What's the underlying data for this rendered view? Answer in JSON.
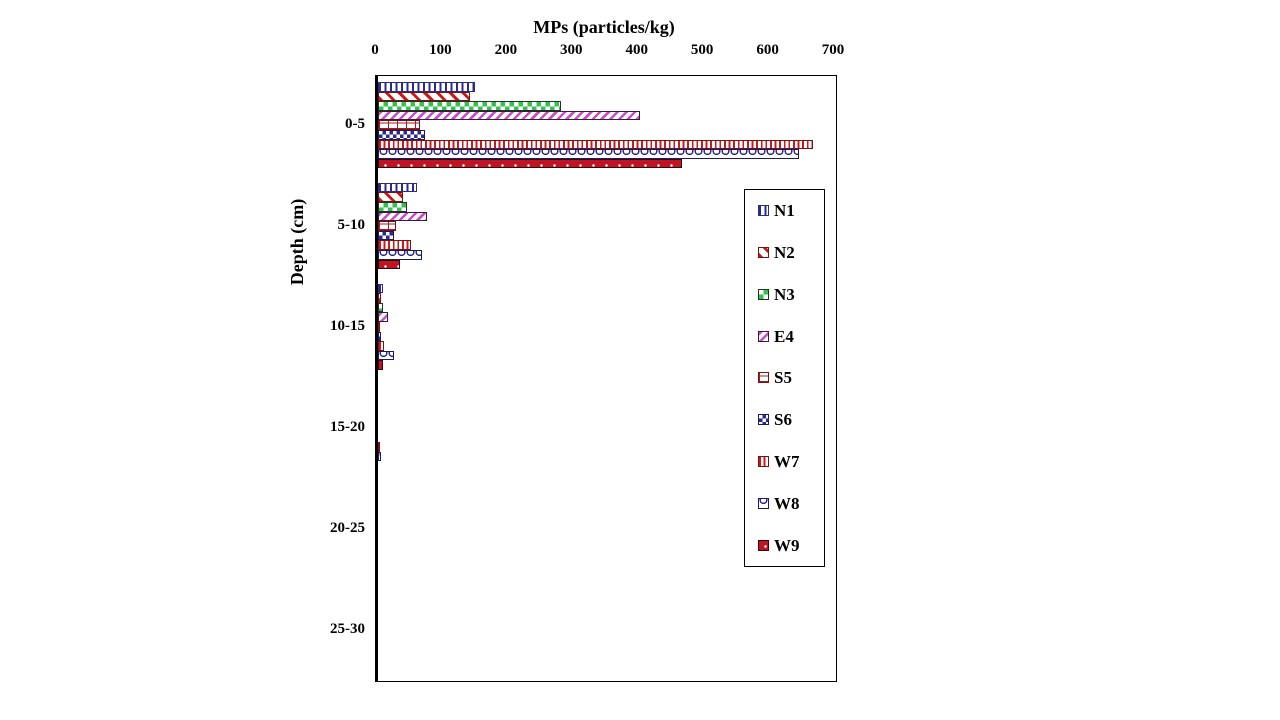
{
  "chart_data": {
    "type": "bar",
    "orientation": "horizontal",
    "title": "MPs (particles/kg)",
    "xlabel": "MPs (particles/kg)",
    "ylabel": "Depth (cm)",
    "xlim": [
      0,
      700
    ],
    "x_ticks": [
      0,
      100,
      200,
      300,
      400,
      500,
      600,
      700
    ],
    "grid": false,
    "legend_position": "right-inside",
    "categories": [
      "0-5",
      "5-10",
      "10-15",
      "15-20",
      "20-25",
      "25-30"
    ],
    "series": [
      {
        "name": "N1",
        "pattern": "vlines",
        "color": "#2b2b8f",
        "border": "#2b2b8f",
        "values": [
          148,
          60,
          8,
          0,
          0,
          0
        ]
      },
      {
        "name": "N2",
        "pattern": "diag-down",
        "color": "#cc1a1a",
        "border": "#7a1010",
        "values": [
          140,
          38,
          5,
          0,
          0,
          0
        ]
      },
      {
        "name": "N3",
        "pattern": "checker",
        "color": "#33c24d",
        "border": "#223322",
        "values": [
          280,
          45,
          8,
          0,
          0,
          0
        ]
      },
      {
        "name": "E4",
        "pattern": "diag-up",
        "color": "#c94fc9",
        "border": "#3a1a3a",
        "values": [
          400,
          75,
          16,
          0,
          0,
          0
        ]
      },
      {
        "name": "S5",
        "pattern": "brick",
        "color": "#a51c1c",
        "border": "#7a1010",
        "values": [
          64,
          28,
          3,
          0,
          0,
          0
        ]
      },
      {
        "name": "S6",
        "pattern": "checker-small",
        "color": "#2b2b8f",
        "border": "#1a1a6b",
        "values": [
          72,
          25,
          4,
          0,
          0,
          0
        ]
      },
      {
        "name": "W7",
        "pattern": "vlines-dense",
        "color": "#cc1a1a",
        "border": "#7a1010",
        "values": [
          665,
          50,
          9,
          3,
          0,
          0
        ]
      },
      {
        "name": "W8",
        "pattern": "scallop",
        "color": "#2b2b8f",
        "border": "#1a1a6b",
        "values": [
          643,
          68,
          24,
          4,
          0,
          0
        ]
      },
      {
        "name": "W9",
        "pattern": "solid-dots",
        "color": "#bf1522",
        "border": "#330808",
        "values": [
          465,
          33,
          7,
          0,
          0,
          0
        ]
      }
    ]
  }
}
